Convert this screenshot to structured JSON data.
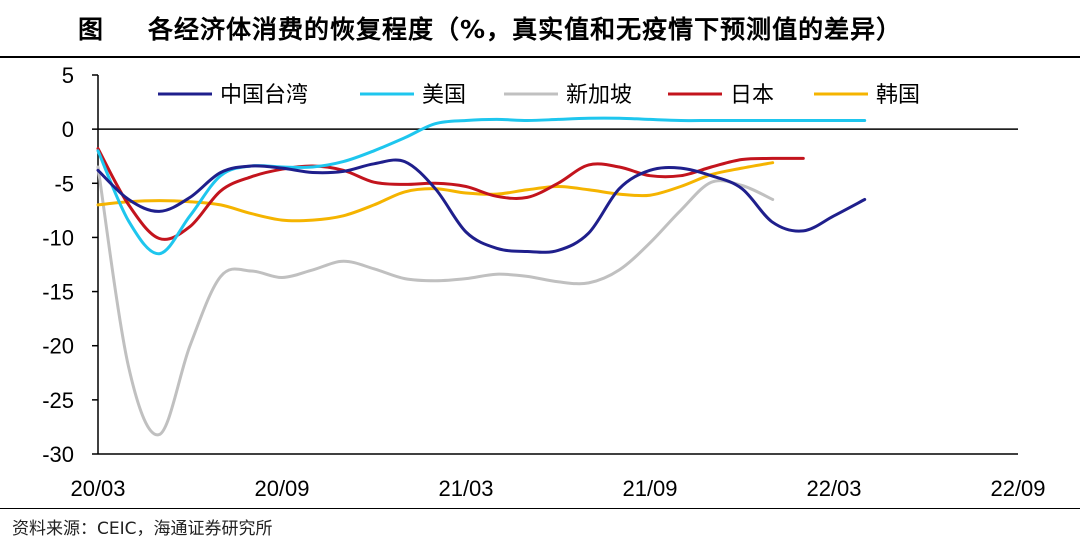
{
  "header": {
    "figure_label": "图",
    "title": "各经济体消费的恢复程度（%，真实值和无疫情下预测值的差异）"
  },
  "footer": {
    "source": "资料来源：CEIC，海通证券研究所"
  },
  "chart_data": {
    "type": "line",
    "title": "各经济体消费的恢复程度（%，真实值和无疫情下预测值的差异）",
    "xlabel": "",
    "ylabel": "",
    "ylim": [
      -30,
      5
    ],
    "yticks": [
      5,
      0,
      -5,
      -10,
      -15,
      -20,
      -25,
      -30
    ],
    "xticks": [
      "20/03",
      "20/09",
      "21/03",
      "21/09",
      "22/03",
      "22/09"
    ],
    "grid": false,
    "legend_position": "top",
    "x": [
      "20/03",
      "20/04",
      "20/05",
      "20/06",
      "20/07",
      "20/08",
      "20/09",
      "20/10",
      "20/11",
      "20/12",
      "21/01",
      "21/02",
      "21/03",
      "21/04",
      "21/05",
      "21/06",
      "21/07",
      "21/08",
      "21/09",
      "21/10",
      "21/11",
      "21/12",
      "22/01",
      "22/02",
      "22/03",
      "22/04",
      "22/05",
      "22/06",
      "22/07",
      "22/08",
      "22/09"
    ],
    "series": [
      {
        "name": "中国台湾",
        "color": "#1f1f8c",
        "values": [
          -3.8,
          -6.5,
          -7.6,
          -6.3,
          -4.0,
          -3.4,
          -3.6,
          -4.0,
          -3.9,
          -3.2,
          -3.0,
          -5.5,
          -9.5,
          -11.0,
          -11.3,
          -11.2,
          -9.6,
          -5.5,
          -3.8,
          -3.6,
          -4.3,
          -5.5,
          -8.6,
          -9.4,
          -8.0,
          -6.5,
          null,
          null,
          null,
          null,
          null
        ]
      },
      {
        "name": "美国",
        "color": "#1ec6ee",
        "values": [
          -2.0,
          -8.5,
          -11.5,
          -8.0,
          -4.3,
          -3.4,
          -3.5,
          -3.5,
          -3.0,
          -2.0,
          -0.8,
          0.5,
          0.8,
          0.9,
          0.8,
          0.9,
          1.0,
          1.0,
          0.9,
          0.8,
          0.8,
          0.8,
          0.8,
          0.8,
          0.8,
          0.8,
          null,
          null,
          null,
          null,
          null
        ]
      },
      {
        "name": "新加坡",
        "color": "#c0c0c0",
        "values": [
          -3.5,
          -22.0,
          -28.2,
          -20.0,
          -13.6,
          -13.1,
          -13.7,
          -13.0,
          -12.2,
          -12.9,
          -13.8,
          -14.0,
          -13.8,
          -13.4,
          -13.6,
          -14.1,
          -14.2,
          -13.0,
          -10.5,
          -7.5,
          -4.9,
          -5.2,
          -6.5,
          null,
          null,
          null,
          null,
          null,
          null,
          null,
          null
        ]
      },
      {
        "name": "日本",
        "color": "#c3141d",
        "values": [
          -1.8,
          -7.0,
          -10.1,
          -9.0,
          -5.7,
          -4.4,
          -3.7,
          -3.4,
          -3.8,
          -4.9,
          -5.1,
          -5.0,
          -5.3,
          -6.2,
          -6.3,
          -5.0,
          -3.3,
          -3.5,
          -4.3,
          -4.3,
          -3.5,
          -2.8,
          -2.7,
          -2.7,
          null,
          null,
          null,
          null,
          null,
          null,
          null
        ]
      },
      {
        "name": "韩国",
        "color": "#f5b400",
        "values": [
          -7.0,
          -6.7,
          -6.6,
          -6.7,
          -7.0,
          -7.8,
          -8.4,
          -8.4,
          -8.0,
          -7.0,
          -5.8,
          -5.5,
          -5.9,
          -6.0,
          -5.6,
          -5.3,
          -5.6,
          -6.0,
          -6.1,
          -5.3,
          -4.2,
          -3.6,
          -3.1,
          null,
          null,
          null,
          null,
          null,
          null,
          null,
          null
        ]
      }
    ]
  }
}
